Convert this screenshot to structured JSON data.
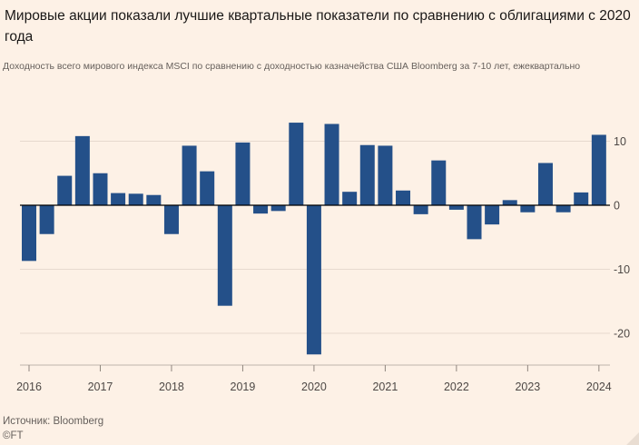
{
  "header": {
    "title": "Мировые акции показали лучшие квартальные показатели по сравнению с облигациями с 2020 года",
    "subtitle": "Доходность всего мирового индекса MSCI по сравнению с доходностью казначейства США Bloomberg за 7-10 лет, ежеквартально"
  },
  "footer": {
    "source": "Источник: Bloomberg",
    "logo": "©FT"
  },
  "colors": {
    "bar": "#245089",
    "grid": "#e6d9ce",
    "zero": "#000000",
    "background": "#fdf1e6"
  },
  "chart_data": {
    "type": "bar",
    "title": "Мировые акции показали лучшие квартальные показатели по сравнению с облигациями с 2020 года",
    "subtitle": "Доходность всего мирового индекса MSCI по сравнению с доходностью казначейства США Bloomberg за 7-10 лет, ежеквартально",
    "xlabel": "",
    "ylabel": "",
    "ylim": [
      -25,
      15
    ],
    "yticks": [
      10,
      0,
      -10,
      -20
    ],
    "grid": true,
    "categories": [
      "2016Q1",
      "2016Q2",
      "2016Q3",
      "2016Q4",
      "2017Q1",
      "2017Q2",
      "2017Q3",
      "2017Q4",
      "2018Q1",
      "2018Q2",
      "2018Q3",
      "2018Q4",
      "2019Q1",
      "2019Q2",
      "2019Q3",
      "2019Q4",
      "2020Q1",
      "2020Q2",
      "2020Q3",
      "2020Q4",
      "2021Q1",
      "2021Q2",
      "2021Q3",
      "2021Q4",
      "2022Q1",
      "2022Q2",
      "2022Q3",
      "2022Q4",
      "2023Q1",
      "2023Q2",
      "2023Q3",
      "2023Q4",
      "2024Q1"
    ],
    "values": [
      -8.7,
      -4.5,
      4.6,
      10.8,
      5.0,
      1.9,
      1.8,
      1.6,
      -4.5,
      9.3,
      5.3,
      -15.7,
      9.8,
      -1.3,
      -0.9,
      12.9,
      -23.3,
      12.7,
      2.1,
      9.4,
      9.3,
      2.3,
      -1.4,
      7.0,
      -0.7,
      -5.3,
      -3.0,
      0.8,
      -1.1,
      6.6,
      -1.1,
      2.0,
      11.0
    ],
    "x_tick_labels": [
      "2016",
      "2017",
      "2018",
      "2019",
      "2020",
      "2021",
      "2022",
      "2023",
      "2024"
    ]
  }
}
